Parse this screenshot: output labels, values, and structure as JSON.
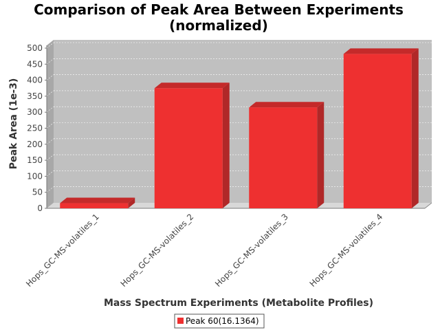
{
  "chart_data": {
    "type": "bar",
    "title_line1": "Comparison of Peak Area Between Experiments",
    "title_line2": "(normalized)",
    "xlabel": "Mass Spectrum Experiments (Metabolite Profiles)",
    "ylabel": "Peak Area (1e-3)",
    "categories": [
      "Hops_GC-MS-volatiles_1",
      "Hops_GC-MS-volatiles_2",
      "Hops_GC-MS-volatiles_3",
      "Hops_GC-MS-volatiles_4"
    ],
    "series": [
      {
        "name": "Peak 60(16.1364)",
        "values": [
          16,
          375,
          315,
          482
        ],
        "color": "#ee3030"
      }
    ],
    "ylim": [
      0,
      500
    ],
    "yticks": [
      "0",
      "50",
      "100",
      "150",
      "200",
      "250",
      "300",
      "350",
      "400",
      "450",
      "500"
    ],
    "grid": true,
    "legend_position": "bottom",
    "colors": {
      "plot_background": "#c0c0c0",
      "bar_front": "#ee3030",
      "bar_top": "#c42a2a",
      "bar_side": "#b02828"
    }
  }
}
